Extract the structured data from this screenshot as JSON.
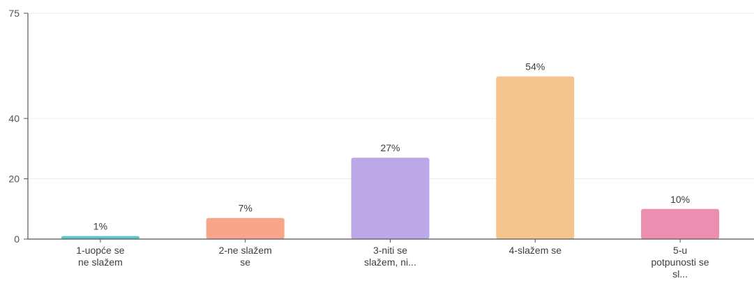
{
  "chart_data": {
    "type": "bar",
    "categories": [
      [
        "1-uopće se",
        "ne slažem"
      ],
      [
        "2-ne slažem",
        "se"
      ],
      [
        "3-niti se",
        "slažem, ni..."
      ],
      [
        "4-slažem se"
      ],
      [
        "5-u",
        "potpunosti se",
        "sl..."
      ]
    ],
    "values": [
      1,
      7,
      27,
      54,
      10
    ],
    "data_labels": [
      "1%",
      "7%",
      "27%",
      "54%",
      "10%"
    ],
    "y_ticks": [
      "0",
      "20",
      "40",
      "75"
    ],
    "y_tick_values": [
      0,
      20,
      40,
      75
    ],
    "ylim": [
      0,
      75
    ],
    "grid": true,
    "colors": [
      "#5bc8d1",
      "#f9a58c",
      "#bca8e6",
      "#f4c58c",
      "#ea8fb0"
    ]
  }
}
